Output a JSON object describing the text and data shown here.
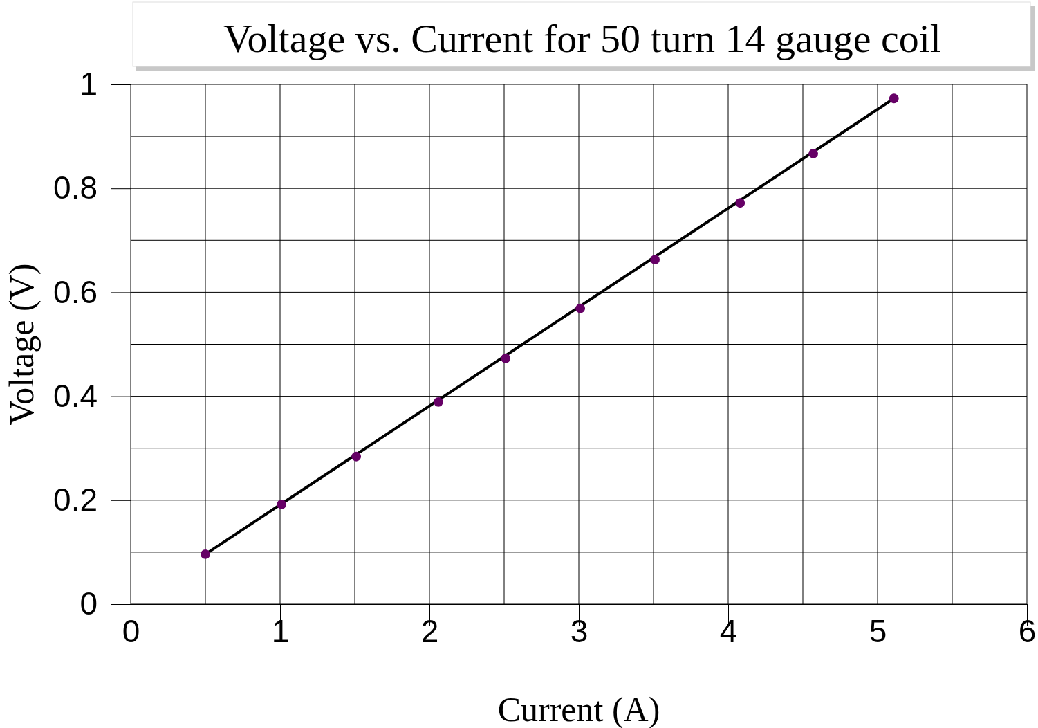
{
  "chart_data": {
    "type": "scatter",
    "title": "Voltage vs. Current for 50 turn 14 gauge coil",
    "xlabel": "Current (A)",
    "ylabel": "Voltage (V)",
    "xlim": [
      0,
      6
    ],
    "ylim": [
      0,
      1
    ],
    "xticks": [
      0,
      {
        "value": 0.5,
        "label": null
      },
      1,
      {
        "value": 1.5,
        "label": null
      },
      2,
      {
        "value": 2.5,
        "label": null
      },
      3,
      {
        "value": 3.5,
        "label": null
      },
      4,
      {
        "value": 4.5,
        "label": null
      },
      5,
      {
        "value": 5.5,
        "label": null
      },
      6
    ],
    "yticks": [
      0,
      {
        "value": 0.1,
        "label": null
      },
      0.2,
      {
        "value": 0.3,
        "label": null
      },
      0.4,
      {
        "value": 0.5,
        "label": null
      },
      0.6,
      {
        "value": 0.7,
        "label": null
      },
      0.8,
      {
        "value": 0.9,
        "label": null
      },
      1
    ],
    "grid": true,
    "marker": "circle",
    "series": [
      {
        "type": "line",
        "color": "#000000",
        "x": [
          0.5,
          5.11
        ],
        "values": [
          0.096,
          0.973
        ],
        "marker": "none"
      },
      {
        "color": "#660066",
        "x": [
          0.5,
          1.01,
          1.51,
          2.06,
          2.51,
          3.01,
          3.51,
          4.08,
          4.57,
          5.11
        ],
        "values": [
          0.096,
          0.192,
          0.284,
          0.389,
          0.473,
          0.569,
          0.663,
          0.772,
          0.867,
          0.973
        ]
      }
    ]
  }
}
